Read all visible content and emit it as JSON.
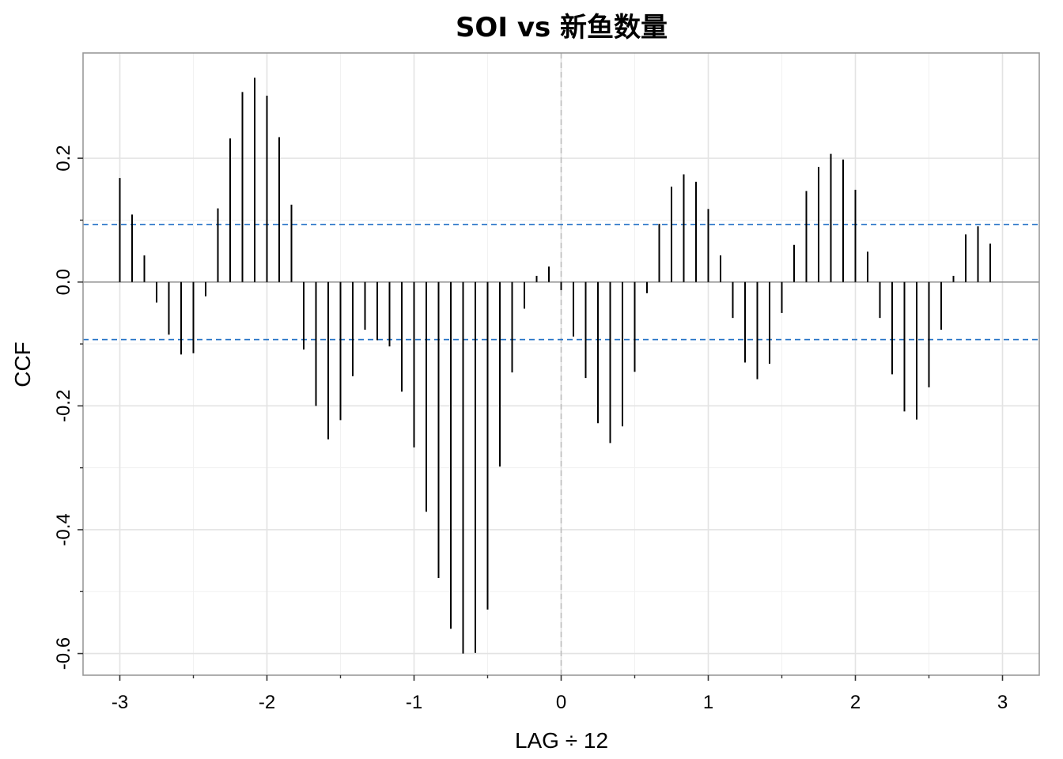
{
  "chart_data": {
    "type": "bar",
    "title": "SOI vs 新鱼数量",
    "xlabel": "LAG ÷ 12",
    "ylabel": "CCF",
    "xlim": [
      -3.25,
      3.25
    ],
    "ylim": [
      -0.635,
      0.37
    ],
    "x_ticks": [
      -3,
      -2,
      -1,
      0,
      1,
      2,
      3
    ],
    "x_tick_labels": [
      "-3",
      "-2",
      "-1",
      "0",
      "1",
      "2",
      "3"
    ],
    "y_ticks": [
      -0.6,
      -0.4,
      -0.2,
      0.0,
      0.2
    ],
    "y_tick_labels": [
      "-0.6",
      "-0.4",
      "-0.2",
      "0.0",
      "0.2"
    ],
    "confidence_band": [
      -0.093,
      0.093
    ],
    "confidence_color": "#1f6fc5",
    "grid": true,
    "bar_color": "#000000",
    "lag_step": 0.08333333,
    "x_start": -3,
    "values": [
      0.168,
      0.109,
      0.043,
      -0.033,
      -0.085,
      -0.117,
      -0.115,
      -0.023,
      0.119,
      0.232,
      0.307,
      0.33,
      0.301,
      0.234,
      0.125,
      -0.109,
      -0.2,
      -0.254,
      -0.223,
      -0.152,
      -0.077,
      -0.094,
      -0.104,
      -0.177,
      -0.267,
      -0.371,
      -0.478,
      -0.56,
      -0.6,
      -0.599,
      -0.529,
      -0.298,
      -0.146,
      -0.043,
      0.01,
      0.025,
      -0.013,
      -0.088,
      -0.155,
      -0.228,
      -0.26,
      -0.233,
      -0.145,
      -0.018,
      0.094,
      0.154,
      0.174,
      0.162,
      0.118,
      0.043,
      -0.058,
      -0.13,
      -0.157,
      -0.132,
      -0.05,
      0.06,
      0.147,
      0.186,
      0.207,
      0.198,
      0.149,
      0.049,
      -0.058,
      -0.149,
      -0.209,
      -0.222,
      -0.17,
      -0.077,
      0.01,
      0.077,
      0.09,
      0.062
    ]
  }
}
